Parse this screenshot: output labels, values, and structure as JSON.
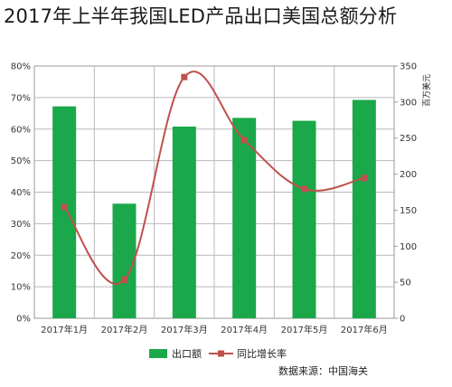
{
  "title": "2017年上半年我国LED产品出口美国总额分析",
  "source": "数据来源：中国海关",
  "chart_data": {
    "type": "bar",
    "title": "2017年上半年我国LED产品出口美国总额分析",
    "categories": [
      "2017年1月",
      "2017年2月",
      "2017年3月",
      "2017年4月",
      "2017年5月",
      "2017年6月"
    ],
    "series": [
      {
        "name": "出口额",
        "type": "bar",
        "axis": "right",
        "values": [
          294,
          159,
          266,
          278,
          274,
          303
        ],
        "color": "#1aa84a"
      },
      {
        "name": "同比增长率",
        "type": "line",
        "axis": "left",
        "values": [
          0.353,
          0.122,
          0.765,
          0.565,
          0.41,
          0.445
        ],
        "color": "#c0504d"
      }
    ],
    "y_left": {
      "ylim": [
        0,
        0.8
      ],
      "ticks": [
        "0%",
        "10%",
        "20%",
        "30%",
        "40%",
        "50%",
        "60%",
        "70%",
        "80%"
      ]
    },
    "y_right": {
      "label": "百万美元",
      "ylim": [
        0,
        350
      ],
      "ticks": [
        "0",
        "50",
        "100",
        "150",
        "200",
        "250",
        "300",
        "350"
      ]
    },
    "grid": true,
    "legend": "bottom"
  }
}
